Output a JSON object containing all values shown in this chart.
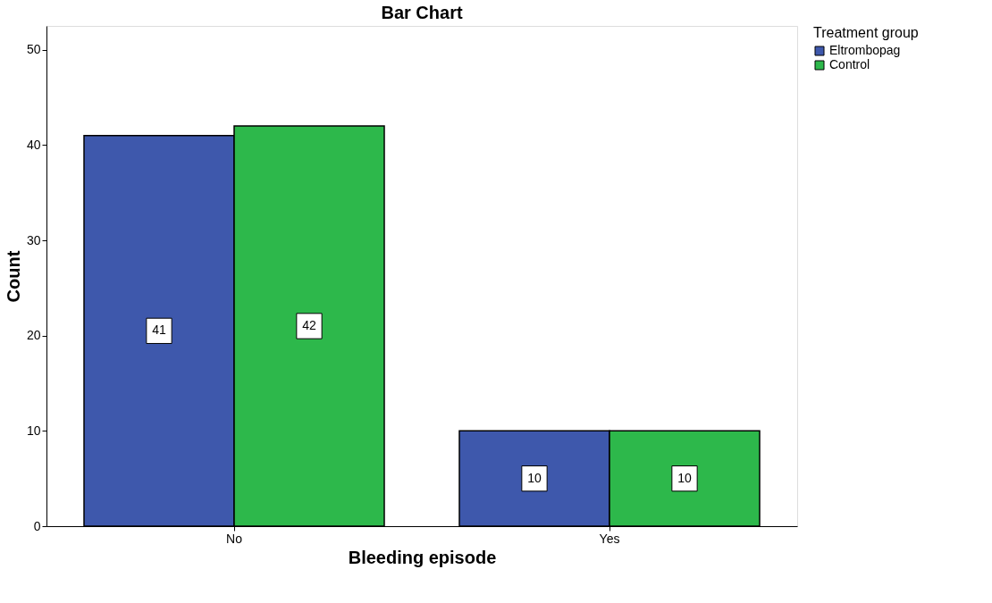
{
  "chart_data": {
    "type": "bar",
    "title": "Bar Chart",
    "xlabel": "Bleeding episode",
    "ylabel": "Count",
    "legend_title": "Treatment group",
    "categories": [
      "No",
      "Yes"
    ],
    "series": [
      {
        "name": "Eltrombopag",
        "color": "#3e58ac",
        "values": [
          41,
          10
        ]
      },
      {
        "name": "Control",
        "color": "#2db84b",
        "values": [
          42,
          10
        ]
      }
    ],
    "ylim": [
      0,
      52.5
    ],
    "yticks": [
      0,
      10,
      20,
      30,
      40,
      50
    ],
    "grid": false,
    "legend": "top right",
    "data_labels": true
  }
}
